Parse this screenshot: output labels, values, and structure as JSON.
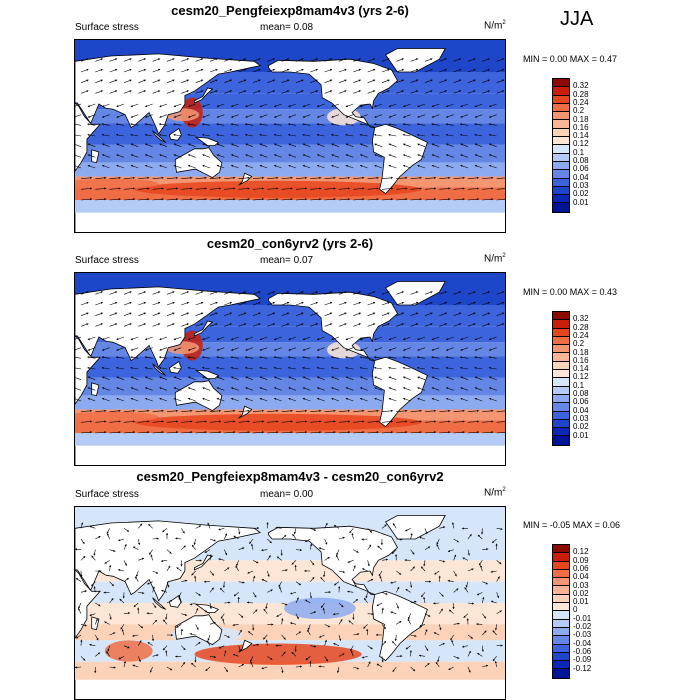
{
  "season": "JJA",
  "panels": [
    {
      "title": "cesm20_Pengfeiexp8mam4v3 (yrs 2-6)",
      "variable": "Surface stress",
      "mean": "mean=  0.08",
      "units": "N/m",
      "units_exp": "2",
      "minmax": "MIN =   0.00 MAX =   0.47",
      "kind": "full",
      "levels": [
        "0.32",
        "0.28",
        "0.24",
        "0.2",
        "0.18",
        "0.16",
        "0.14",
        "0.12",
        "0.1",
        "0.08",
        "0.06",
        "0.04",
        "0.03",
        "0.02",
        "0.01"
      ],
      "colors": [
        "#8c0a00",
        "#c81e0a",
        "#e6461e",
        "#f06e46",
        "#f59673",
        "#fab496",
        "#fcd2b9",
        "#fde6d6",
        "#d6e6fa",
        "#b4ccf5",
        "#8caaf0",
        "#6487e6",
        "#3c64dc",
        "#1e46c8",
        "#0a28b4",
        "#001496"
      ]
    },
    {
      "title": "cesm20_con6yrv2 (yrs 2-6)",
      "variable": "Surface stress",
      "mean": "mean=  0.07",
      "units": "N/m",
      "units_exp": "2",
      "minmax": "MIN =   0.00 MAX =   0.43",
      "kind": "full",
      "levels": [
        "0.32",
        "0.28",
        "0.24",
        "0.2",
        "0.18",
        "0.16",
        "0.14",
        "0.12",
        "0.1",
        "0.08",
        "0.06",
        "0.04",
        "0.03",
        "0.02",
        "0.01"
      ],
      "colors": [
        "#8c0a00",
        "#c81e0a",
        "#e6461e",
        "#f06e46",
        "#f59673",
        "#fab496",
        "#fcd2b9",
        "#fde6d6",
        "#d6e6fa",
        "#b4ccf5",
        "#8caaf0",
        "#6487e6",
        "#3c64dc",
        "#1e46c8",
        "#0a28b4",
        "#001496"
      ]
    },
    {
      "title": "cesm20_Pengfeiexp8mam4v3 - cesm20_con6yrv2",
      "variable": "Surface stress",
      "mean": "mean=  0.00",
      "units": "N/m",
      "units_exp": "2",
      "minmax": "MIN =  -0.05 MAX =   0.06",
      "kind": "diff",
      "levels": [
        "0.12",
        "0.09",
        "0.06",
        "0.04",
        "0.03",
        "0.02",
        "0.01",
        "0",
        "-0.01",
        "-0.02",
        "-0.03",
        "-0.04",
        "-0.06",
        "-0.09",
        "-0.12"
      ],
      "colors": [
        "#8c0a00",
        "#c81e0a",
        "#e6461e",
        "#f06e46",
        "#f59673",
        "#fab496",
        "#fcd2b9",
        "#fde6d6",
        "#d6e6fa",
        "#b4ccf5",
        "#8caaf0",
        "#6487e6",
        "#3c64dc",
        "#1e46c8",
        "#0a28b4",
        "#001496"
      ]
    }
  ]
}
